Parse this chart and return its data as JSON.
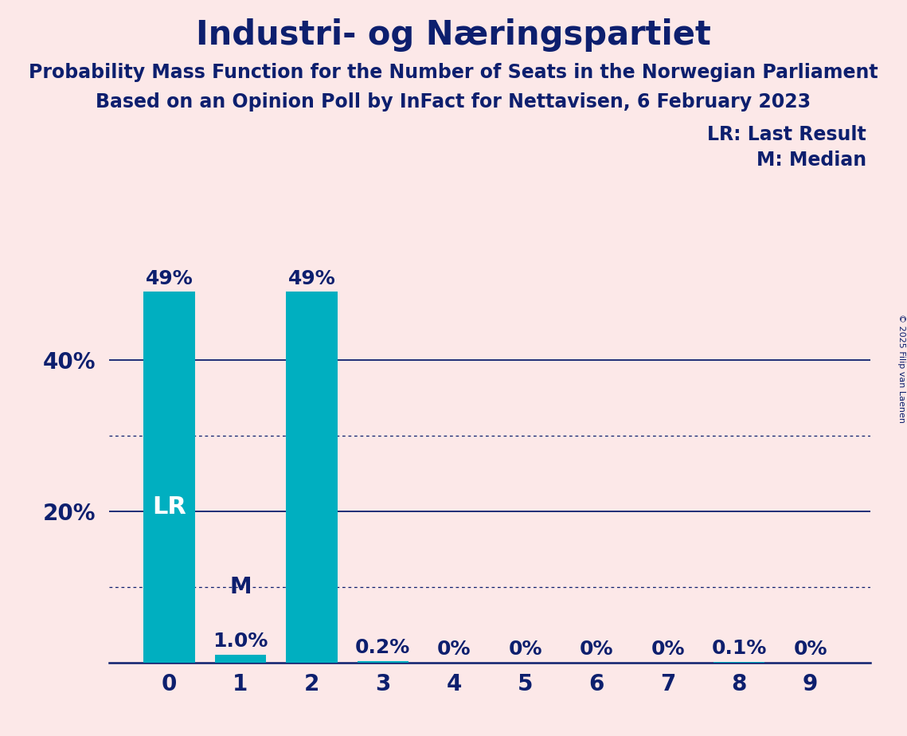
{
  "title": "Industri- og Næringspartiet",
  "subtitle1": "Probability Mass Function for the Number of Seats in the Norwegian Parliament",
  "subtitle2": "Based on an Opinion Poll by InFact for Nettavisen, 6 February 2023",
  "copyright": "© 2025 Filip van Laenen",
  "categories": [
    0,
    1,
    2,
    3,
    4,
    5,
    6,
    7,
    8,
    9
  ],
  "values": [
    0.49,
    0.01,
    0.49,
    0.002,
    0.0,
    0.0,
    0.0,
    0.0,
    0.001,
    0.0
  ],
  "bar_labels": [
    "49%",
    "1.0%",
    "49%",
    "0.2%",
    "0%",
    "0%",
    "0%",
    "0%",
    "0.1%",
    "0%"
  ],
  "bar_color": "#00afc0",
  "background_color": "#fce8e8",
  "text_color": "#0d1f6e",
  "bar_label_color_inside": "#ffffff",
  "lr_bar_index": 0,
  "median_bar_index": 1,
  "lr_label": "LR",
  "median_label": "M",
  "legend_lr": "LR: Last Result",
  "legend_m": "M: Median",
  "ylim_max": 0.545,
  "solid_yticks": [
    0.2,
    0.4
  ],
  "dotted_yticks": [
    0.1,
    0.3
  ],
  "ytick_display": [
    0.2,
    0.4
  ],
  "ytick_labels": [
    "20%",
    "40%"
  ],
  "title_fontsize": 30,
  "subtitle_fontsize": 17,
  "axis_fontsize": 20,
  "bar_label_fontsize": 18,
  "legend_fontsize": 17,
  "lr_fontsize": 22,
  "m_fontsize": 20,
  "copyright_fontsize": 8
}
